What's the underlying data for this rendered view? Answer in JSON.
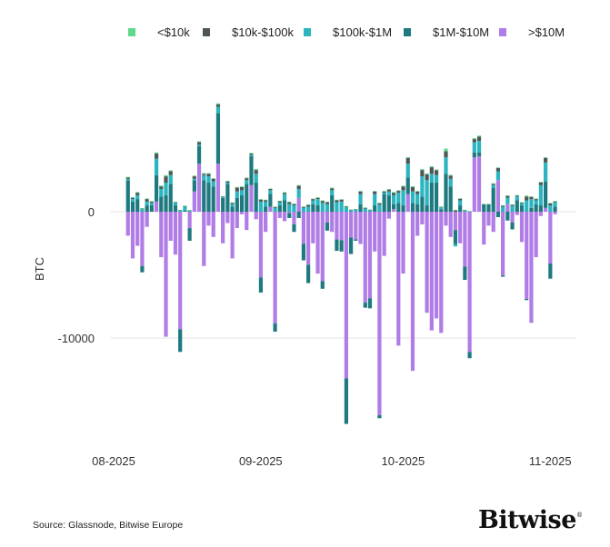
{
  "chart_data": {
    "type": "bar",
    "stacked": true,
    "title": "",
    "xlabel": "",
    "ylabel": "BTC",
    "ylim": [
      -17500,
      9000
    ],
    "y_ticks": [
      {
        "value": 0,
        "label": "0"
      },
      {
        "value": -10000,
        "label": "-10000"
      }
    ],
    "x_ticks": [
      {
        "date": "2025-08-01",
        "label": "08-2025"
      },
      {
        "date": "2025-09-01",
        "label": "09-2025"
      },
      {
        "date": "2025-10-01",
        "label": "10-2025"
      },
      {
        "date": "2025-11-01",
        "label": "11-2025"
      }
    ],
    "grid": "horizontal at labeled y ticks",
    "legend_position": "top-right",
    "dates": [
      "2025-08-04",
      "2025-08-05",
      "2025-08-06",
      "2025-08-07",
      "2025-08-08",
      "2025-08-09",
      "2025-08-10",
      "2025-08-11",
      "2025-08-12",
      "2025-08-13",
      "2025-08-14",
      "2025-08-15",
      "2025-08-16",
      "2025-08-17",
      "2025-08-18",
      "2025-08-19",
      "2025-08-20",
      "2025-08-21",
      "2025-08-22",
      "2025-08-23",
      "2025-08-24",
      "2025-08-25",
      "2025-08-26",
      "2025-08-27",
      "2025-08-28",
      "2025-08-29",
      "2025-08-30",
      "2025-08-31",
      "2025-09-01",
      "2025-09-02",
      "2025-09-03",
      "2025-09-04",
      "2025-09-05",
      "2025-09-06",
      "2025-09-07",
      "2025-09-08",
      "2025-09-09",
      "2025-09-10",
      "2025-09-11",
      "2025-09-12",
      "2025-09-13",
      "2025-09-14",
      "2025-09-15",
      "2025-09-16",
      "2025-09-17",
      "2025-09-18",
      "2025-09-19",
      "2025-09-20",
      "2025-09-21",
      "2025-09-22",
      "2025-09-23",
      "2025-09-24",
      "2025-09-25",
      "2025-09-26",
      "2025-09-27",
      "2025-09-28",
      "2025-09-29",
      "2025-09-30",
      "2025-10-01",
      "2025-10-02",
      "2025-10-03",
      "2025-10-04",
      "2025-10-05",
      "2025-10-06",
      "2025-10-07",
      "2025-10-08",
      "2025-10-09",
      "2025-10-10",
      "2025-10-11",
      "2025-10-12",
      "2025-10-13",
      "2025-10-14",
      "2025-10-15",
      "2025-10-16",
      "2025-10-17",
      "2025-10-18",
      "2025-10-19",
      "2025-10-20",
      "2025-10-21",
      "2025-10-22",
      "2025-10-23",
      "2025-10-24",
      "2025-10-25",
      "2025-10-26",
      "2025-10-27",
      "2025-10-28",
      "2025-10-29",
      "2025-10-30",
      "2025-10-31",
      "2025-11-01",
      "2025-11-02"
    ],
    "series": [
      {
        "name": ">$10M",
        "color": "#b07ce6",
        "values": [
          -1900,
          -3700,
          -2700,
          -4300,
          -1200,
          0,
          800,
          -3600,
          -9900,
          -2300,
          -3400,
          -9300,
          0,
          -1300,
          1600,
          3800,
          -4300,
          -1100,
          -2000,
          3800,
          -2500,
          -900,
          -3700,
          -1300,
          -200,
          -1450,
          2100,
          -600,
          -5200,
          -1600,
          400,
          -8850,
          -500,
          -750,
          -100,
          -1000,
          1100,
          -2550,
          -4200,
          -2500,
          -4900,
          -5500,
          -850,
          -1600,
          -2200,
          -2250,
          -13200,
          -2050,
          -2200,
          -2550,
          -7200,
          -6850,
          -3150,
          -16100,
          -3500,
          -550,
          200,
          -10600,
          -4900,
          1400,
          -12600,
          -1900,
          -1000,
          -8000,
          -9400,
          -8450,
          -9600,
          -1100,
          -2000,
          -1450,
          -2500,
          -4350,
          -11100,
          4300,
          4400,
          -2600,
          -1100,
          -1600,
          2500,
          -5050,
          600,
          -850,
          -260,
          -2400,
          -6900,
          -8800,
          -3600,
          -340,
          300,
          -4100,
          -200
        ]
      },
      {
        "name": "$1M-$10M",
        "color": "#1f7a80",
        "values": [
          2500,
          800,
          1000,
          -500,
          500,
          500,
          2100,
          1200,
          1300,
          2200,
          500,
          -1800,
          100,
          -1000,
          900,
          1400,
          2500,
          2300,
          2000,
          4000,
          1100,
          2200,
          400,
          1100,
          1300,
          2200,
          2300,
          2300,
          -1200,
          400,
          1000,
          -650,
          500,
          900,
          -400,
          -600,
          -500,
          -1300,
          -1450,
          600,
          500,
          -600,
          -650,
          1300,
          -900,
          -900,
          -3600,
          -1300,
          -100,
          600,
          -400,
          -800,
          500,
          -250,
          1400,
          1300,
          400,
          700,
          500,
          1300,
          700,
          600,
          1200,
          500,
          2300,
          2300,
          200,
          3000,
          2000,
          -1100,
          500,
          -1050,
          -500,
          400,
          300,
          600,
          600,
          1900,
          -430,
          -100,
          -700,
          -550,
          900,
          500,
          -100,
          300,
          600,
          500,
          2100,
          -1200,
          400
        ]
      },
      {
        "name": "$100k-$1M",
        "color": "#2bb5c0",
        "values": [
          100,
          200,
          300,
          200,
          300,
          200,
          1300,
          600,
          1000,
          700,
          200,
          100,
          300,
          80,
          100,
          100,
          400,
          500,
          400,
          500,
          50,
          100,
          200,
          500,
          400,
          300,
          100,
          700,
          800,
          400,
          300,
          300,
          250,
          500,
          600,
          500,
          700,
          300,
          400,
          300,
          500,
          700,
          600,
          400,
          750,
          800,
          350,
          130,
          150,
          800,
          250,
          120,
          900,
          550,
          100,
          300,
          700,
          800,
          1200,
          1100,
          900,
          800,
          1600,
          2000,
          700,
          600,
          150,
          1300,
          600,
          -200,
          400,
          100,
          30,
          800,
          900,
          0,
          0,
          200,
          700,
          400,
          500,
          450,
          300,
          150,
          900,
          700,
          300,
          1600,
          1500,
          500,
          350
        ]
      },
      {
        "name": "$10k-$100k",
        "color": "#4f5656",
        "values": [
          100,
          100,
          200,
          50,
          200,
          100,
          400,
          200,
          500,
          300,
          50,
          30,
          50,
          30,
          200,
          200,
          100,
          200,
          200,
          200,
          50,
          100,
          100,
          300,
          250,
          150,
          100,
          300,
          150,
          100,
          100,
          80,
          80,
          100,
          150,
          100,
          250,
          80,
          130,
          100,
          100,
          150,
          150,
          150,
          150,
          150,
          70,
          30,
          40,
          200,
          60,
          40,
          200,
          120,
          100,
          150,
          200,
          150,
          300,
          450,
          350,
          200,
          500,
          450,
          520,
          380,
          40,
          500,
          250,
          100,
          120,
          30,
          10,
          250,
          350,
          0,
          0,
          100,
          250,
          70,
          150,
          100,
          80,
          70,
          300,
          170,
          100,
          220,
          350,
          150,
          70
        ]
      },
      {
        "name": "<$10k",
        "color": "#5fd98b",
        "values": [
          60,
          50,
          60,
          30,
          50,
          40,
          100,
          80,
          100,
          80,
          40,
          20,
          30,
          20,
          60,
          80,
          60,
          60,
          60,
          80,
          30,
          50,
          40,
          60,
          60,
          60,
          60,
          80,
          60,
          50,
          40,
          30,
          40,
          50,
          50,
          50,
          60,
          40,
          50,
          40,
          40,
          50,
          50,
          60,
          50,
          50,
          30,
          20,
          20,
          50,
          30,
          20,
          50,
          40,
          50,
          50,
          60,
          50,
          60,
          80,
          70,
          50,
          80,
          80,
          80,
          70,
          20,
          200,
          70,
          50,
          50,
          20,
          10,
          70,
          80,
          20,
          20,
          50,
          60,
          40,
          50,
          30,
          40,
          30,
          80,
          50,
          50,
          50,
          70,
          50,
          30
        ]
      }
    ]
  },
  "footer": {
    "source": "Source: Glassnode, Bitwise Europe",
    "brand": "Bitwise",
    "brand_mark": "®"
  }
}
